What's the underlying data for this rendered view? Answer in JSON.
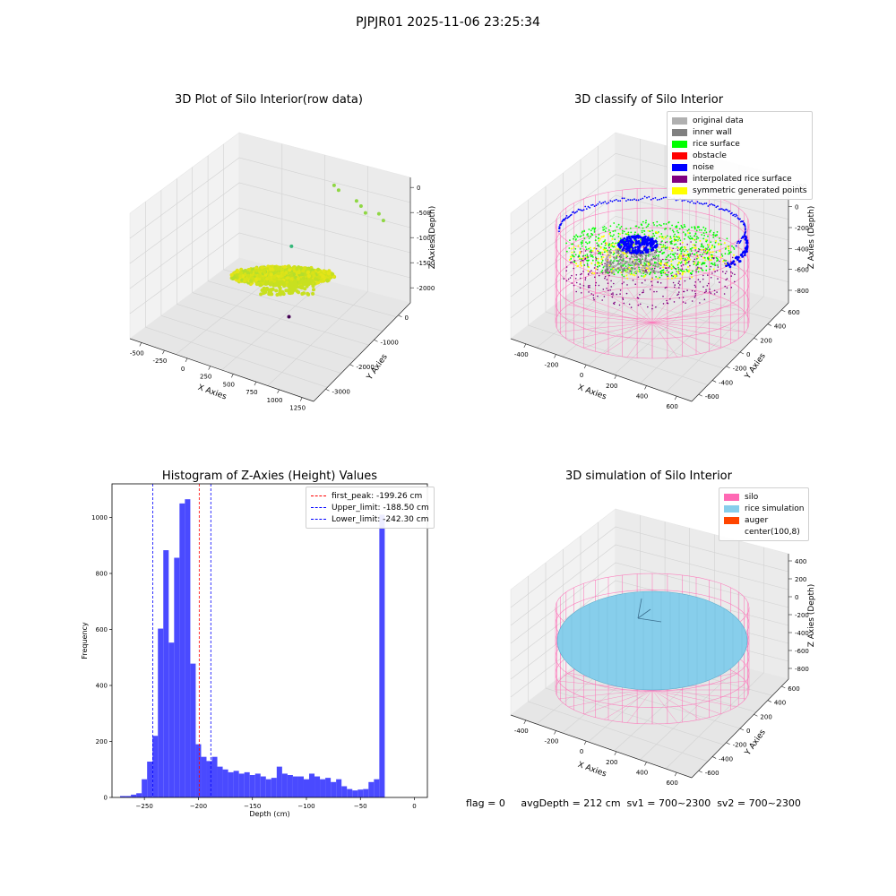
{
  "suptitle": "PJPJR01 2025-11-06 23:25:34",
  "status_text": "flag = 0     avgDepth = 212 cm  sv1 = 700~2300  sv2 = 700~2300",
  "colors": {
    "silo": "#ff69b4",
    "rice_sim": "#87ceeb",
    "auger": "#ff4500",
    "hist_bar": "#4a4aff",
    "original": "#b0b0b0",
    "inner_wall": "#808080",
    "rice_surface": "#00ff00",
    "obstacle": "#ff0000",
    "noise": "#0000ff",
    "interpolated": "#800080",
    "symmetric": "#ffff00"
  },
  "chart_data": [
    {
      "type": "scatter",
      "kind": "3d",
      "title": "3D Plot of Silo Interior(row data)",
      "xlabel": "X Axies",
      "ylabel": "Y Axies",
      "zlabel": "Z Axies (Depth)",
      "x_ticks": [
        "-500",
        "-250",
        "0",
        "250",
        "500",
        "750",
        "1000",
        "1250"
      ],
      "y_ticks": [
        "-3000",
        "-2000",
        "-1000",
        "0"
      ],
      "z_ticks": [
        "0",
        "-500",
        "-1000",
        "-1500",
        "-2000"
      ],
      "xlim": [
        -650,
        1400
      ],
      "ylim": [
        -3600,
        700
      ],
      "zlim": [
        -2300,
        100
      ],
      "outliers": [
        {
          "x": 700,
          "y": 100,
          "z": -200
        },
        {
          "x": 750,
          "y": 100,
          "z": -260
        },
        {
          "x": 950,
          "y": 100,
          "z": -350
        },
        {
          "x": 1000,
          "y": 100,
          "z": -420
        },
        {
          "x": 1050,
          "y": 100,
          "z": -520
        },
        {
          "x": 1200,
          "y": 100,
          "z": -450
        },
        {
          "x": 1250,
          "y": 100,
          "z": -550
        },
        {
          "x": 500,
          "y": -1000,
          "z": -1000
        },
        {
          "x": 1100,
          "y": -3500,
          "z": -900
        }
      ]
    },
    {
      "type": "scatter",
      "kind": "3d",
      "title": "3D classify of Silo Interior",
      "xlabel": "X Axies",
      "ylabel": "Y Axies",
      "zlabel": "Z Axies (Depth)",
      "x_ticks": [
        "-400",
        "-200",
        "0",
        "200",
        "400",
        "600"
      ],
      "y_ticks": [
        "-600",
        "-400",
        "-200",
        "0",
        "200",
        "400",
        "600"
      ],
      "z_ticks": [
        "200",
        "0",
        "-200",
        "-400",
        "-600",
        "-800"
      ],
      "legend_position": "top-right",
      "legend": [
        {
          "label": "original data",
          "color": "#b0b0b0"
        },
        {
          "label": "inner wall",
          "color": "#808080"
        },
        {
          "label": "rice surface",
          "color": "#00ff00"
        },
        {
          "label": "obstacle",
          "color": "#ff0000"
        },
        {
          "label": "noise",
          "color": "#0000ff"
        },
        {
          "label": "interpolated rice surface",
          "color": "#800080"
        },
        {
          "label": "symmetric generated points",
          "color": "#ffff00"
        }
      ]
    },
    {
      "type": "bar",
      "title": "Histogram of Z-Axies (Height) Values",
      "xlabel": "Depth (cm)",
      "ylabel": "Frequency",
      "xlim": [
        -280,
        12
      ],
      "ylim": [
        0,
        1120
      ],
      "x_ticks": [
        -250,
        -200,
        -150,
        -100,
        -50,
        0
      ],
      "y_ticks": [
        0,
        200,
        400,
        600,
        800,
        1000
      ],
      "bin_start": -272.5,
      "bin_width": 5,
      "values": [
        5,
        5,
        10,
        15,
        65,
        128,
        220,
        603,
        883,
        553,
        856,
        1050,
        1065,
        478,
        190,
        145,
        130,
        145,
        110,
        100,
        90,
        95,
        85,
        90,
        80,
        85,
        75,
        65,
        70,
        110,
        85,
        80,
        75,
        75,
        65,
        85,
        75,
        65,
        70,
        55,
        65,
        40,
        30,
        25,
        28,
        30,
        55,
        65,
        1010
      ],
      "legend_position": "top-right",
      "vlines": [
        {
          "label": "first_peak: -199.26 cm",
          "x": -199.26,
          "color": "#ff0000"
        },
        {
          "label": "Upper_limit: -188.50 cm",
          "x": -188.5,
          "color": "#0000ff"
        },
        {
          "label": "Lower_limit: -242.30 cm",
          "x": -242.3,
          "color": "#0000ff"
        }
      ]
    },
    {
      "type": "scatter",
      "kind": "3d",
      "title": "3D simulation of Silo Interior",
      "xlabel": "X Axies",
      "ylabel": "Y Axies",
      "zlabel": "Z Axies (Depth)",
      "x_ticks": [
        "-400",
        "-200",
        "0",
        "200",
        "400",
        "600"
      ],
      "y_ticks": [
        "-600",
        "-400",
        "-200",
        "0",
        "200",
        "400",
        "600"
      ],
      "z_ticks": [
        "400",
        "200",
        "0",
        "-200",
        "-400",
        "-600",
        "-800"
      ],
      "legend_position": "top-right",
      "legend": [
        {
          "label": "silo",
          "color": "#ff69b4"
        },
        {
          "label": "rice simulation",
          "color": "#87ceeb"
        },
        {
          "label": "auger",
          "color": "#ff4500"
        },
        {
          "label": "center(100,8)",
          "color": ""
        }
      ]
    }
  ]
}
